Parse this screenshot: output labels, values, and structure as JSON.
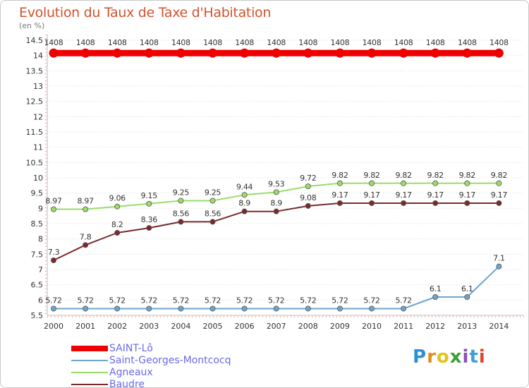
{
  "title": "Evolution du Taux de Taxe d'Habitation",
  "unit": "(en %)",
  "brand": {
    "letters": [
      "P",
      "r",
      "o",
      "x",
      "i",
      "t",
      "i"
    ],
    "colors": [
      "#2e8fd6",
      "#e38d1c",
      "#e0c41c",
      "#3e9e3a",
      "#8a4fb8",
      "#3ea0d8",
      "#e0452e"
    ]
  },
  "chart_data": {
    "type": "line",
    "x": [
      "2000",
      "2001",
      "2002",
      "2003",
      "2004",
      "2005",
      "2006",
      "2007",
      "2008",
      "2009",
      "2010",
      "2011",
      "2012",
      "2013",
      "2014"
    ],
    "ylim": [
      5.5,
      14.5
    ],
    "yticks": [
      "5.5",
      "6",
      "6.5",
      "7",
      "7.5",
      "8",
      "8.5",
      "9",
      "9.5",
      "10",
      "10.5",
      "11",
      "11.5",
      "12",
      "12.5",
      "13",
      "13.5",
      "14",
      "14.5"
    ],
    "grid": "horizontal dotted",
    "legend_position": "bottom-left",
    "series": [
      {
        "name": "SAINT-Lô",
        "color": "#ee0000",
        "values": [
          14.08,
          14.08,
          14.08,
          14.08,
          14.08,
          14.08,
          14.08,
          14.08,
          14.08,
          14.08,
          14.08,
          14.08,
          14.08,
          14.08,
          14.08
        ],
        "labels": [
          "1408",
          "1408",
          "1408",
          "1408",
          "1408",
          "1408",
          "1408",
          "1408",
          "1408",
          "1408",
          "1408",
          "1408",
          "1408",
          "1408",
          "1408"
        ]
      },
      {
        "name": "Saint-Georges-Montcocq",
        "color": "#6fa4cf",
        "values": [
          5.72,
          5.72,
          5.72,
          5.72,
          5.72,
          5.72,
          5.72,
          5.72,
          5.72,
          5.72,
          5.72,
          5.72,
          6.1,
          6.1,
          7.1
        ],
        "labels": [
          "5.72",
          "5.72",
          "5.72",
          "5.72",
          "5.72",
          "5.72",
          "5.72",
          "5.72",
          "5.72",
          "5.72",
          "5.72",
          "5.72",
          "6.1",
          "6.1",
          "7.1"
        ]
      },
      {
        "name": "Agneaux",
        "color": "#9bdc6a",
        "values": [
          8.97,
          8.97,
          9.06,
          9.15,
          9.25,
          9.25,
          9.44,
          9.53,
          9.72,
          9.82,
          9.82,
          9.82,
          9.82,
          9.82,
          9.82
        ],
        "labels": [
          "8.97",
          "8.97",
          "9.06",
          "9.15",
          "9.25",
          "9.25",
          "9.44",
          "9.53",
          "9.72",
          "9.82",
          "9.82",
          "9.82",
          "9.82",
          "9.82",
          "9.82"
        ]
      },
      {
        "name": "Baudre",
        "color": "#7a2a2a",
        "values": [
          7.3,
          7.8,
          8.2,
          8.36,
          8.56,
          8.56,
          8.9,
          8.9,
          9.08,
          9.17,
          9.17,
          9.17,
          9.17,
          9.17,
          9.17
        ],
        "labels": [
          "7.3",
          "7.8",
          "8.2",
          "8.36",
          "8.56",
          "8.56",
          "8.9",
          "8.9",
          "9.08",
          "9.17",
          "9.17",
          "9.17",
          "9.17",
          "9.17",
          "9.17"
        ]
      }
    ]
  }
}
